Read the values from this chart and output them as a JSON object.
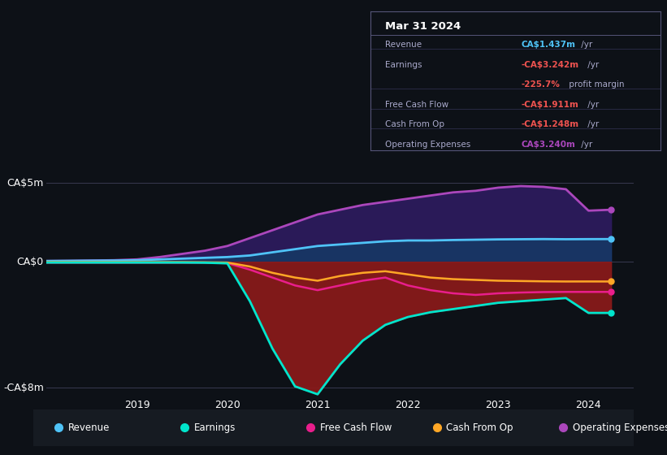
{
  "bg_color": "#0d1117",
  "plot_bg_color": "#0d1117",
  "title": "Mar 31 2024",
  "ylabel_5m": "CA$5m",
  "ylabel_0": "CA$0",
  "ylabel_neg8m": "-CA$8m",
  "ylim": [
    -8.5,
    6.5
  ],
  "line_colors": {
    "revenue": "#4fc3f7",
    "earnings": "#00e5cc",
    "free_cash_flow": "#e91e8c",
    "cash_from_op": "#ffa726",
    "operating_expenses": "#ab47bc"
  },
  "t": [
    2018.0,
    2018.25,
    2018.5,
    2018.75,
    2019.0,
    2019.25,
    2019.5,
    2019.75,
    2020.0,
    2020.25,
    2020.5,
    2020.75,
    2021.0,
    2021.25,
    2021.5,
    2021.75,
    2022.0,
    2022.25,
    2022.5,
    2022.75,
    2023.0,
    2023.25,
    2023.5,
    2023.75,
    2024.0,
    2024.25
  ],
  "revenue": [
    0.05,
    0.06,
    0.07,
    0.08,
    0.1,
    0.15,
    0.2,
    0.25,
    0.3,
    0.4,
    0.6,
    0.8,
    1.0,
    1.1,
    1.2,
    1.3,
    1.35,
    1.35,
    1.38,
    1.4,
    1.42,
    1.43,
    1.44,
    1.43,
    1.437,
    1.44
  ],
  "earnings": [
    -0.05,
    -0.05,
    -0.05,
    -0.05,
    -0.05,
    -0.05,
    -0.05,
    -0.06,
    -0.1,
    -2.5,
    -5.5,
    -7.9,
    -8.4,
    -6.5,
    -5.0,
    -4.0,
    -3.5,
    -3.2,
    -3.0,
    -2.8,
    -2.6,
    -2.5,
    -2.4,
    -2.3,
    -3.242,
    -3.242
  ],
  "free_cash_flow": [
    -0.05,
    -0.05,
    -0.05,
    -0.05,
    -0.05,
    -0.05,
    -0.05,
    -0.05,
    -0.08,
    -0.5,
    -1.0,
    -1.5,
    -1.8,
    -1.5,
    -1.2,
    -1.0,
    -1.5,
    -1.8,
    -2.0,
    -2.1,
    -2.0,
    -1.95,
    -1.92,
    -1.91,
    -1.911,
    -1.91
  ],
  "cash_from_op": [
    -0.02,
    -0.02,
    -0.02,
    -0.02,
    -0.02,
    -0.02,
    -0.02,
    -0.03,
    -0.05,
    -0.3,
    -0.7,
    -1.0,
    -1.2,
    -0.9,
    -0.7,
    -0.6,
    -0.8,
    -1.0,
    -1.1,
    -1.15,
    -1.2,
    -1.22,
    -1.24,
    -1.25,
    -1.248,
    -1.25
  ],
  "operating_expenses": [
    0.05,
    0.06,
    0.08,
    0.1,
    0.15,
    0.3,
    0.5,
    0.7,
    1.0,
    1.5,
    2.0,
    2.5,
    3.0,
    3.3,
    3.6,
    3.8,
    4.0,
    4.2,
    4.4,
    4.5,
    4.7,
    4.8,
    4.75,
    4.6,
    3.24,
    3.3
  ],
  "legend_items": [
    {
      "label": "Revenue",
      "color": "#4fc3f7"
    },
    {
      "label": "Earnings",
      "color": "#00e5cc"
    },
    {
      "label": "Free Cash Flow",
      "color": "#e91e8c"
    },
    {
      "label": "Cash From Op",
      "color": "#ffa726"
    },
    {
      "label": "Operating Expenses",
      "color": "#ab47bc"
    }
  ],
  "tooltip_rows": [
    {
      "label": "Revenue",
      "value": "CA$1.437m",
      "suffix": " /yr",
      "color": "#4fc3f7"
    },
    {
      "label": "Earnings",
      "value": "-CA$3.242m",
      "suffix": " /yr",
      "color": "#ef5350"
    },
    {
      "label": "",
      "value": "-225.7%",
      "suffix": " profit margin",
      "color": "#ef5350"
    },
    {
      "label": "Free Cash Flow",
      "value": "-CA$1.911m",
      "suffix": " /yr",
      "color": "#ef5350"
    },
    {
      "label": "Cash From Op",
      "value": "-CA$1.248m",
      "suffix": " /yr",
      "color": "#ef5350"
    },
    {
      "label": "Operating Expenses",
      "value": "CA$3.240m",
      "suffix": " /yr",
      "color": "#ab47bc"
    }
  ]
}
